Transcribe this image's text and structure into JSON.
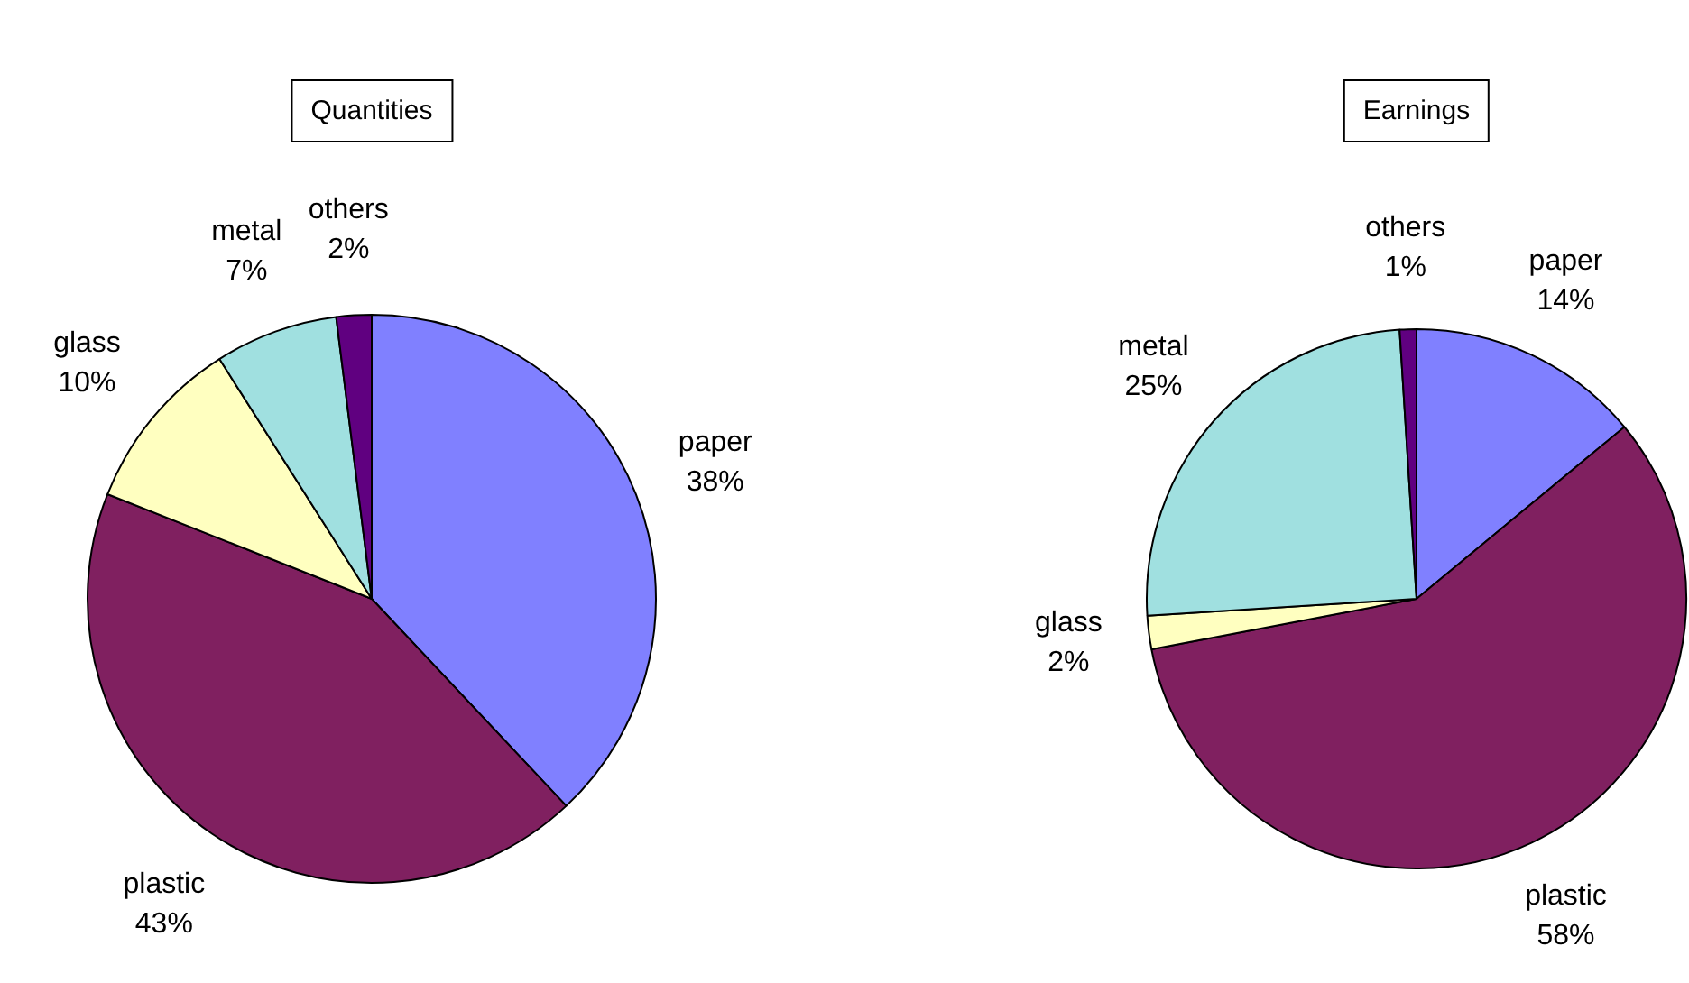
{
  "chart_data": [
    {
      "type": "pie",
      "title": "Quantities",
      "categories": [
        "paper",
        "plastic",
        "glass",
        "metal",
        "others"
      ],
      "values": [
        38,
        43,
        10,
        7,
        2
      ],
      "value_labels": [
        "38%",
        "43%",
        "10%",
        "7%",
        "2%"
      ],
      "colors": [
        "#8080ff",
        "#802060",
        "#ffffc0",
        "#a0e0e0",
        "#600080"
      ],
      "legend": false
    },
    {
      "type": "pie",
      "title": "Earnings",
      "categories": [
        "paper",
        "plastic",
        "glass",
        "metal",
        "others"
      ],
      "values": [
        14,
        58,
        2,
        25,
        1
      ],
      "value_labels": [
        "14%",
        "58%",
        "2%",
        "25%",
        "1%"
      ],
      "colors": [
        "#8080ff",
        "#802060",
        "#ffffc0",
        "#a0e0e0",
        "#600080"
      ],
      "legend": false
    }
  ]
}
